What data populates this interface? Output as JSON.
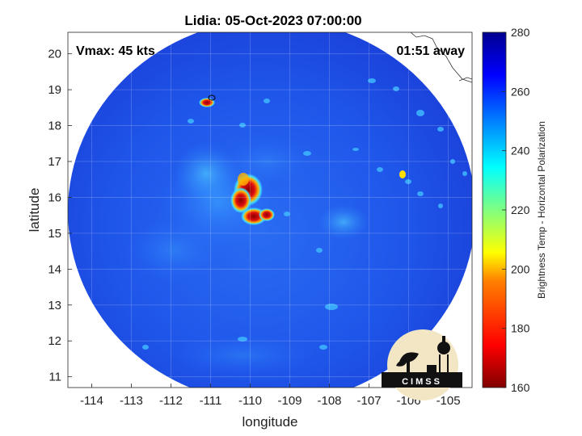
{
  "title": "Lidia: 05-Oct-2023 07:00:00",
  "annotations": {
    "vmax": "Vmax: 45 kts",
    "time_away": "01:51 away"
  },
  "axes": {
    "xlabel": "longitude",
    "ylabel": "latitude",
    "xlim": [
      -114.6,
      -104.4
    ],
    "ylim": [
      10.7,
      20.6
    ],
    "xticks": [
      -114,
      -113,
      -112,
      -111,
      -110,
      -109,
      -108,
      -107,
      -106,
      -105
    ],
    "yticks": [
      11,
      12,
      13,
      14,
      15,
      16,
      17,
      18,
      19,
      20
    ],
    "grid": true
  },
  "colorbar": {
    "label": "Brightness Temp - Horizontal Polarization",
    "range": [
      160,
      280
    ],
    "ticks": [
      160,
      180,
      200,
      220,
      240,
      260,
      280
    ],
    "colormap": "jet",
    "stops": [
      "#800000",
      "#ff0000",
      "#ff8000",
      "#ffff00",
      "#80ff80",
      "#00ffff",
      "#0080ff",
      "#0000ff",
      "#00008f"
    ]
  },
  "logo": {
    "text": "CIMSS"
  },
  "map_data": {
    "swath_center": [
      -109.6,
      15.7
    ],
    "background_temp_K": 262,
    "cold_features": [
      {
        "lon": -110.2,
        "lat": 16.0,
        "temp": 170
      },
      {
        "lon": -110.0,
        "lat": 15.4,
        "temp": 172
      },
      {
        "lon": -109.5,
        "lat": 15.45,
        "temp": 178
      },
      {
        "lon": -111.05,
        "lat": 18.75,
        "temp": 180
      },
      {
        "lon": -106.1,
        "lat": 16.6,
        "temp": 210
      }
    ]
  }
}
